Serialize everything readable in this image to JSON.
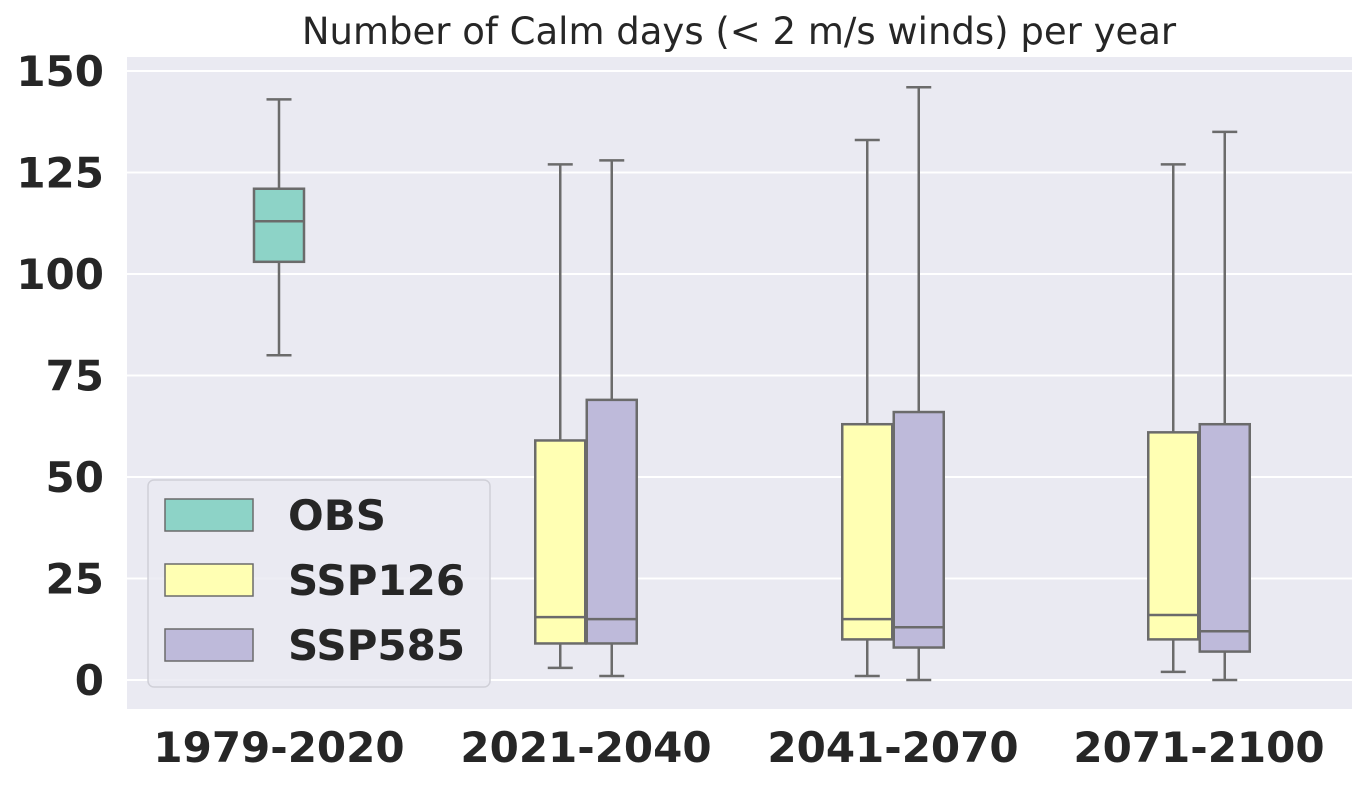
{
  "chart_data": {
    "type": "box",
    "title": "Number of Calm days (< 2 m/s winds) per year",
    "xlabel": "",
    "ylabel": "",
    "ylim": [
      -7,
      152
    ],
    "yticks": [
      0,
      25,
      50,
      75,
      100,
      125,
      150
    ],
    "grid": true,
    "legend_position": "lower-left",
    "categories": [
      "1979-2020",
      "2021-2040",
      "2041-2070",
      "2071-2100"
    ],
    "series": [
      {
        "name": "OBS",
        "color": "#8dd3c7",
        "boxes": [
          {
            "category": "1979-2020",
            "whislo": 80,
            "q1": 103,
            "median": 113,
            "q3": 121,
            "whishi": 143
          }
        ]
      },
      {
        "name": "SSP126",
        "color": "#ffffb3",
        "boxes": [
          {
            "category": "2021-2040",
            "whislo": 3,
            "q1": 9,
            "median": 15.5,
            "q3": 59,
            "whishi": 127
          },
          {
            "category": "2041-2070",
            "whislo": 1,
            "q1": 10,
            "median": 15,
            "q3": 63,
            "whishi": 133
          },
          {
            "category": "2071-2100",
            "whislo": 2,
            "q1": 10,
            "median": 16,
            "q3": 61,
            "whishi": 127
          }
        ]
      },
      {
        "name": "SSP585",
        "color": "#bebada",
        "boxes": [
          {
            "category": "2021-2040",
            "whislo": 1,
            "q1": 9,
            "median": 15,
            "q3": 69,
            "whishi": 128
          },
          {
            "category": "2041-2070",
            "whislo": 0,
            "q1": 8,
            "median": 13,
            "q3": 66,
            "whishi": 146
          },
          {
            "category": "2071-2100",
            "whislo": 0,
            "q1": 7,
            "median": 12,
            "q3": 63,
            "whishi": 135
          }
        ]
      }
    ]
  }
}
